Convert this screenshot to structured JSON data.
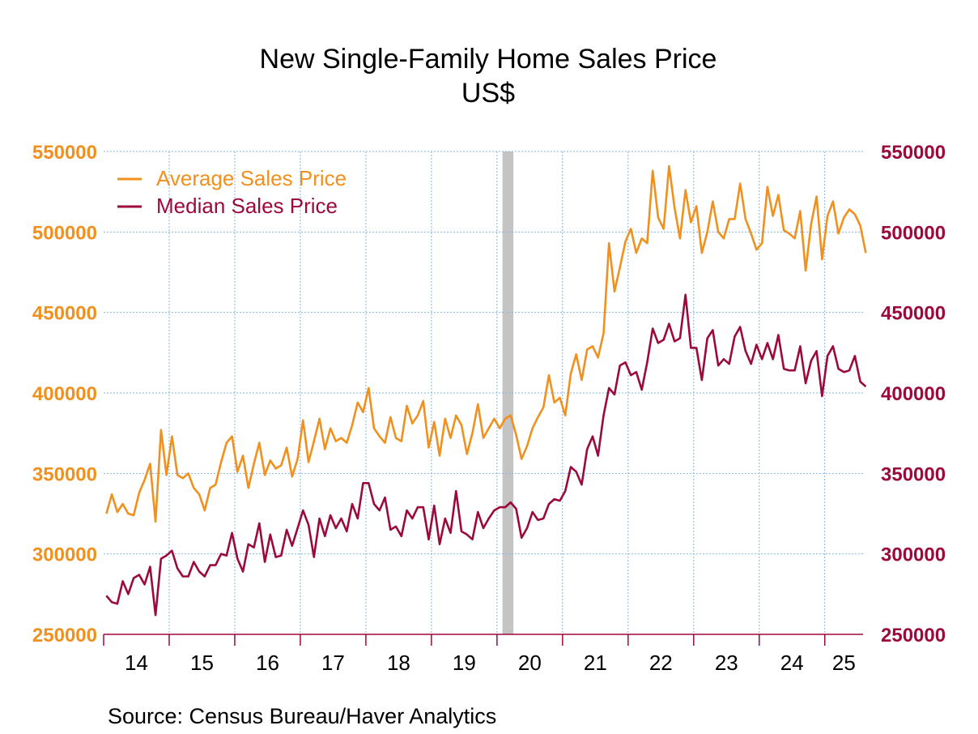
{
  "chart_data": {
    "type": "line",
    "title": "New Single-Family Home Sales Price",
    "subtitle": "US$",
    "source": "Source:  Census Bureau/Haver Analytics",
    "x_start": "2014-01",
    "x_range": [
      "2014-01",
      "2025-07"
    ],
    "x_tick_labels": [
      "14",
      "15",
      "16",
      "17",
      "18",
      "19",
      "20",
      "21",
      "22",
      "23",
      "24",
      "25"
    ],
    "ylim": [
      250000,
      550000
    ],
    "y_ticks": [
      "250000",
      "300000",
      "350000",
      "400000",
      "450000",
      "500000",
      "550000"
    ],
    "y2lim": [
      250000,
      550000
    ],
    "y2_ticks": [
      "250000",
      "300000",
      "350000",
      "400000",
      "450000",
      "500000",
      "550000"
    ],
    "grid": true,
    "legend_position": "top-left",
    "recession_shading": [
      "2020-02",
      "2020-04"
    ],
    "colors": {
      "average": "#f0901e",
      "median": "#9b0a3a",
      "recession": "#c4c4c4",
      "grid": "#7fb5e6"
    },
    "series": [
      {
        "name": "Average Sales Price",
        "axis": "left",
        "color": "#f0901e",
        "values": [
          325000,
          337000,
          326000,
          331000,
          325000,
          324000,
          338000,
          346000,
          356000,
          320000,
          377000,
          349000,
          373000,
          349000,
          347000,
          350000,
          341000,
          337000,
          327000,
          341000,
          343000,
          357000,
          369000,
          373000,
          351000,
          361000,
          341000,
          356000,
          369000,
          349000,
          358000,
          353000,
          355000,
          366000,
          348000,
          359000,
          383000,
          357000,
          370000,
          384000,
          365000,
          378000,
          370000,
          372000,
          369000,
          380000,
          394000,
          388000,
          403000,
          378000,
          373000,
          369000,
          385000,
          372000,
          370000,
          392000,
          381000,
          386000,
          395000,
          366000,
          382000,
          361000,
          384000,
          372000,
          386000,
          380000,
          362000,
          375000,
          393000,
          372000,
          378000,
          384000,
          378000,
          384000,
          386000,
          374000,
          359000,
          367000,
          378000,
          385000,
          391000,
          411000,
          394000,
          397000,
          386000,
          412000,
          424000,
          408000,
          427000,
          429000,
          422000,
          437000,
          493000,
          463000,
          478000,
          494000,
          502000,
          487000,
          496000,
          493000,
          538000,
          509000,
          502000,
          541000,
          515000,
          496000,
          526000,
          506000,
          516000,
          487000,
          500000,
          519000,
          500000,
          496000,
          508000,
          508000,
          530000,
          508000,
          499000,
          489000,
          493000,
          528000,
          510000,
          523000,
          501000,
          499000,
          496000,
          513000,
          476000,
          505000,
          522000,
          483000,
          510000,
          519000,
          499000,
          509000,
          514000,
          511000,
          504000,
          487000
        ]
      },
      {
        "name": "Median Sales Price",
        "axis": "right",
        "color": "#9b0a3a",
        "values": [
          274000,
          270000,
          269000,
          283000,
          275000,
          285000,
          287000,
          281000,
          292000,
          262000,
          297000,
          299000,
          302000,
          291000,
          286000,
          286000,
          295000,
          289000,
          286000,
          293000,
          293000,
          300000,
          299000,
          313000,
          297000,
          289000,
          306000,
          304000,
          319000,
          295000,
          312000,
          298000,
          299000,
          315000,
          305000,
          316000,
          327000,
          318000,
          298000,
          322000,
          311000,
          324000,
          316000,
          322000,
          314000,
          331000,
          322000,
          344000,
          344000,
          331000,
          327000,
          335000,
          315000,
          317000,
          311000,
          327000,
          322000,
          329000,
          329000,
          309000,
          330000,
          306000,
          322000,
          313000,
          339000,
          314000,
          312000,
          309000,
          326000,
          316000,
          322000,
          327000,
          329000,
          329000,
          332000,
          328000,
          310000,
          316000,
          326000,
          321000,
          322000,
          331000,
          334000,
          333000,
          339000,
          354000,
          351000,
          343000,
          365000,
          373000,
          361000,
          386000,
          403000,
          399000,
          417000,
          419000,
          411000,
          413000,
          402000,
          419000,
          440000,
          431000,
          433000,
          443000,
          432000,
          434000,
          461000,
          428000,
          428000,
          408000,
          434000,
          439000,
          417000,
          421000,
          418000,
          435000,
          441000,
          426000,
          418000,
          430000,
          421000,
          431000,
          421000,
          436000,
          415000,
          414000,
          414000,
          429000,
          406000,
          420000,
          426000,
          398000,
          423000,
          429000,
          415000,
          413000,
          414000,
          423000,
          407000,
          404000
        ]
      }
    ]
  }
}
